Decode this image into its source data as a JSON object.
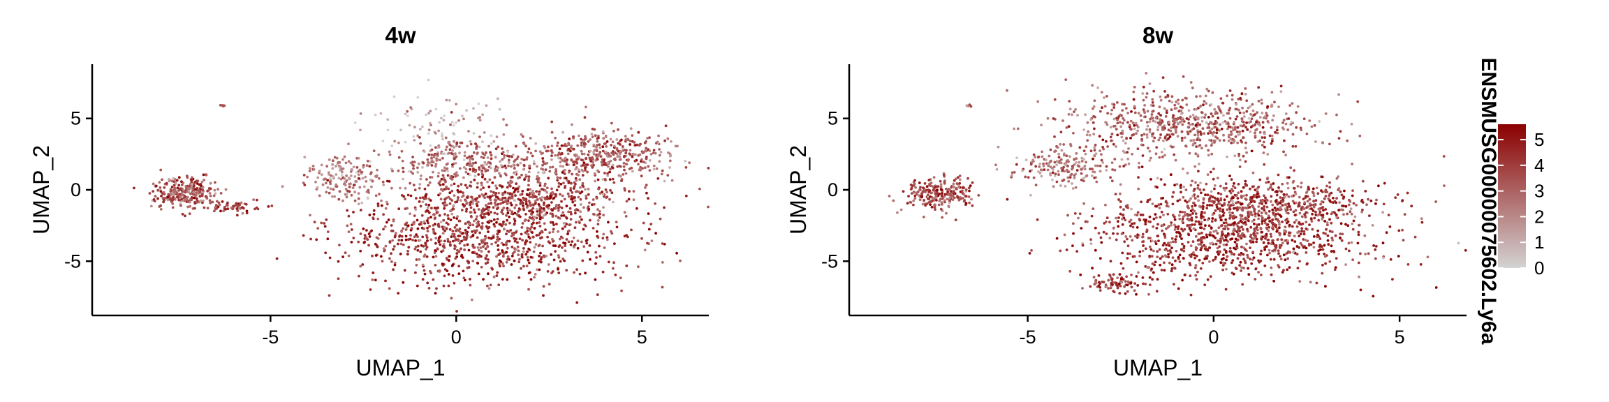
{
  "chart_data": [
    {
      "type": "scatter",
      "title": "4w",
      "xlabel": "UMAP_1",
      "ylabel": "UMAP_2",
      "xlim": [
        -9.8,
        6.8
      ],
      "ylim": [
        -8.8,
        8.8
      ],
      "xticks": [
        -5,
        0,
        5
      ],
      "yticks": [
        -5,
        0,
        5
      ],
      "xtick_labels": [
        "-5",
        "0",
        "5"
      ],
      "ytick_labels": [
        "-5",
        "0",
        "5"
      ],
      "grid": false,
      "clusters": [
        {
          "cx": 0.8,
          "cy": -3.4,
          "rx": 3.4,
          "ry": 2.9,
          "n": 900,
          "expr": 4.2
        },
        {
          "cx": 1.6,
          "cy": -0.5,
          "rx": 2.8,
          "ry": 1.8,
          "n": 520,
          "expr": 3.8
        },
        {
          "cx": 3.8,
          "cy": 2.4,
          "rx": 1.9,
          "ry": 1.7,
          "n": 420,
          "expr": 3.2
        },
        {
          "cx": 0.2,
          "cy": 2.0,
          "rx": 1.8,
          "ry": 1.4,
          "n": 260,
          "expr": 2.8
        },
        {
          "cx": -3.0,
          "cy": 0.8,
          "rx": 1.0,
          "ry": 1.4,
          "n": 160,
          "expr": 2.2
        },
        {
          "cx": -0.6,
          "cy": 4.8,
          "rx": 1.8,
          "ry": 1.6,
          "n": 80,
          "expr": 0.8
        },
        {
          "cx": -7.3,
          "cy": -0.2,
          "rx": 0.8,
          "ry": 1.0,
          "n": 260,
          "expr": 3.4
        },
        {
          "cx": -6.0,
          "cy": -1.2,
          "rx": 0.7,
          "ry": 0.4,
          "n": 60,
          "expr": 4.0
        },
        {
          "cx": -6.3,
          "cy": 5.9,
          "rx": 0.08,
          "ry": 0.06,
          "n": 6,
          "expr": 3.0
        }
      ]
    },
    {
      "type": "scatter",
      "title": "8w",
      "xlabel": "UMAP_1",
      "ylabel": "UMAP_2",
      "xlim": [
        -9.8,
        6.8
      ],
      "ylim": [
        -8.8,
        8.8
      ],
      "xticks": [
        -5,
        0,
        5
      ],
      "yticks": [
        -5,
        0,
        5
      ],
      "xtick_labels": [
        "-5",
        "0",
        "5"
      ],
      "ytick_labels": [
        "-5",
        "0",
        "5"
      ],
      "grid": false,
      "clusters": [
        {
          "cx": 0.4,
          "cy": -3.3,
          "rx": 3.6,
          "ry": 2.7,
          "n": 950,
          "expr": 4.2
        },
        {
          "cx": 1.5,
          "cy": -1.0,
          "rx": 2.9,
          "ry": 1.8,
          "n": 500,
          "expr": 3.8
        },
        {
          "cx": -0.6,
          "cy": 4.5,
          "rx": 3.0,
          "ry": 2.2,
          "n": 700,
          "expr": 3.0
        },
        {
          "cx": -4.0,
          "cy": 1.6,
          "rx": 1.2,
          "ry": 1.3,
          "n": 180,
          "expr": 2.6
        },
        {
          "cx": -7.4,
          "cy": -0.3,
          "rx": 0.8,
          "ry": 1.0,
          "n": 240,
          "expr": 3.6
        },
        {
          "cx": -2.5,
          "cy": -6.6,
          "rx": 0.9,
          "ry": 0.5,
          "n": 80,
          "expr": 4.0
        },
        {
          "cx": -6.6,
          "cy": 5.9,
          "rx": 0.1,
          "ry": 0.08,
          "n": 5,
          "expr": 3.0
        }
      ]
    }
  ],
  "legend": {
    "title": "ENSMUSG00000075602.Ly6a",
    "ticks": [
      0,
      1,
      2,
      3,
      4,
      5
    ],
    "tick_labels": [
      "0",
      "1",
      "2",
      "3",
      "4",
      "5"
    ],
    "range": [
      0,
      5.6
    ],
    "low_color": "#d3d3d3",
    "high_color": "#8b0000",
    "placement": "right"
  }
}
